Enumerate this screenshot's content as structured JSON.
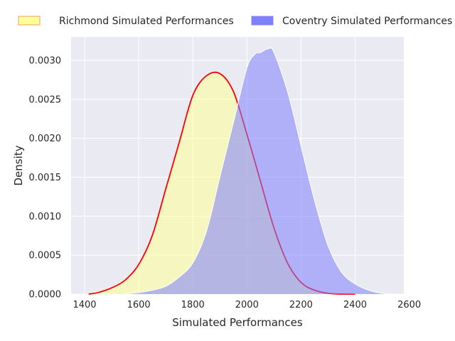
{
  "chart_data": {
    "type": "area",
    "title": "",
    "xlabel": "Simulated Performances",
    "ylabel": "Density",
    "xlim": [
      1350,
      2580
    ],
    "ylim": [
      0,
      0.0033
    ],
    "x_ticks": [
      1400,
      1600,
      1800,
      2000,
      2200,
      2400,
      2600
    ],
    "y_ticks": [
      0,
      0.0005,
      0.001,
      0.0015,
      0.002,
      0.0025,
      0.003
    ],
    "x_tick_labels": [
      "1400",
      "1600",
      "1800",
      "2000",
      "2200",
      "2400",
      "2600"
    ],
    "y_tick_labels": [
      "0.0000",
      "0.0005",
      "0.0010",
      "0.0015",
      "0.0020",
      "0.0025",
      "0.0030"
    ],
    "grid": true,
    "legend_position": "top",
    "series": [
      {
        "name": "Richmond Simulated Performances",
        "fill_color": "#ffff99",
        "line_color": "#ff0000",
        "x": [
          1415,
          1450,
          1500,
          1550,
          1600,
          1650,
          1700,
          1750,
          1800,
          1850,
          1900,
          1950,
          2000,
          2050,
          2100,
          2150,
          2200,
          2250,
          2300,
          2350,
          2400
        ],
        "y": [
          0.0,
          2e-05,
          8e-05,
          0.00018,
          0.00038,
          0.00075,
          0.00135,
          0.00195,
          0.00255,
          0.0028,
          0.00283,
          0.0026,
          0.00205,
          0.00145,
          0.00085,
          0.0004,
          0.00015,
          5e-05,
          1e-05,
          0.0,
          0.0
        ]
      },
      {
        "name": "Coventry Simulated Performances",
        "fill_color": "#8080ff",
        "line_color": "#ffffff",
        "x": [
          1550,
          1600,
          1650,
          1700,
          1750,
          1800,
          1850,
          1900,
          1950,
          2000,
          2030,
          2050,
          2080,
          2100,
          2150,
          2200,
          2250,
          2300,
          2350,
          2400,
          2450,
          2500,
          2550
        ],
        "y": [
          0.0,
          2e-05,
          5e-05,
          0.0001,
          0.00022,
          0.0004,
          0.0008,
          0.0015,
          0.0022,
          0.0029,
          0.00308,
          0.0031,
          0.00315,
          0.0031,
          0.0026,
          0.0019,
          0.0012,
          0.00062,
          0.00028,
          0.00013,
          5e-05,
          1e-05,
          0.0
        ]
      }
    ]
  }
}
